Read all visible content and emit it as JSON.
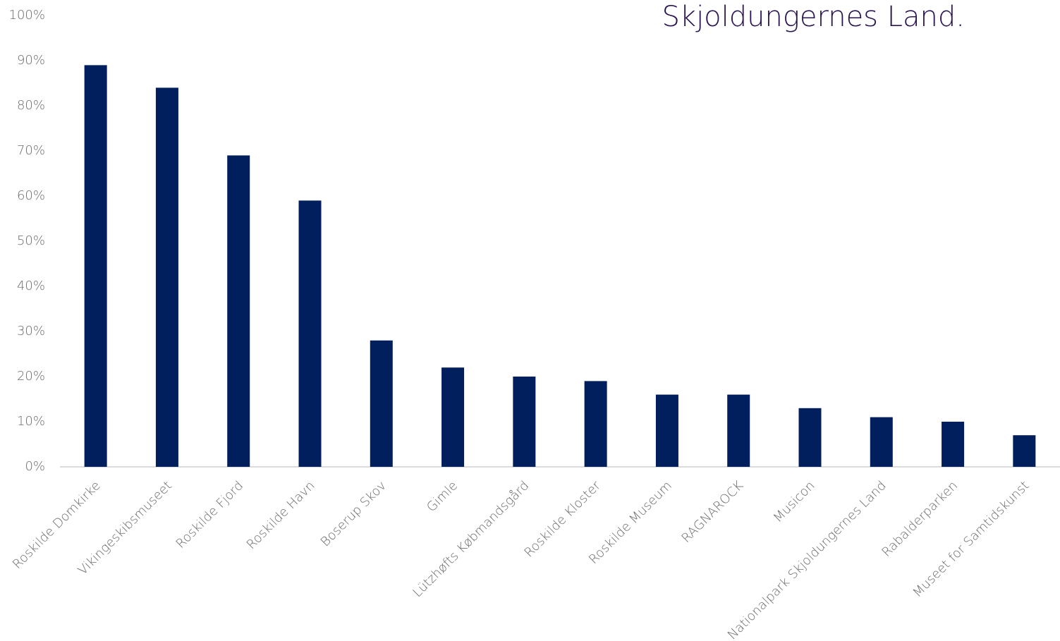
{
  "chart_data": {
    "type": "bar",
    "title": "Skjoldungernes Land.",
    "categories": [
      "Roskilde Domkirke",
      "Vikingeskibsmuseet",
      "Roskilde Fjord",
      "Roskilde Havn",
      "Boserup Skov",
      "Gimle",
      "Lützhøfts Købmandsgård",
      "Roskilde Kloster",
      "Roskilde Museum",
      "RAGNAROCK",
      "Musicon",
      "Nationalpark Skjoldungernes Land",
      "Rabalderparken",
      "Museet for Samtidskunst"
    ],
    "values": [
      89,
      84,
      69,
      59,
      28,
      22,
      20,
      19,
      16,
      16,
      13,
      11,
      10,
      7
    ],
    "color": "#001f5c",
    "ylim": [
      0,
      100
    ],
    "yticks": [
      {
        "value": 0,
        "label": "0%"
      },
      {
        "value": 10,
        "label": "10%"
      },
      {
        "value": 20,
        "label": "20%"
      },
      {
        "value": 30,
        "label": "30%"
      },
      {
        "value": 40,
        "label": "40%"
      },
      {
        "value": 50,
        "label": "50%"
      },
      {
        "value": 60,
        "label": "60%"
      },
      {
        "value": 70,
        "label": "70%"
      },
      {
        "value": 80,
        "label": "80%"
      },
      {
        "value": 90,
        "label": "90%"
      },
      {
        "value": 100,
        "label": "100%"
      }
    ],
    "grid": false
  }
}
